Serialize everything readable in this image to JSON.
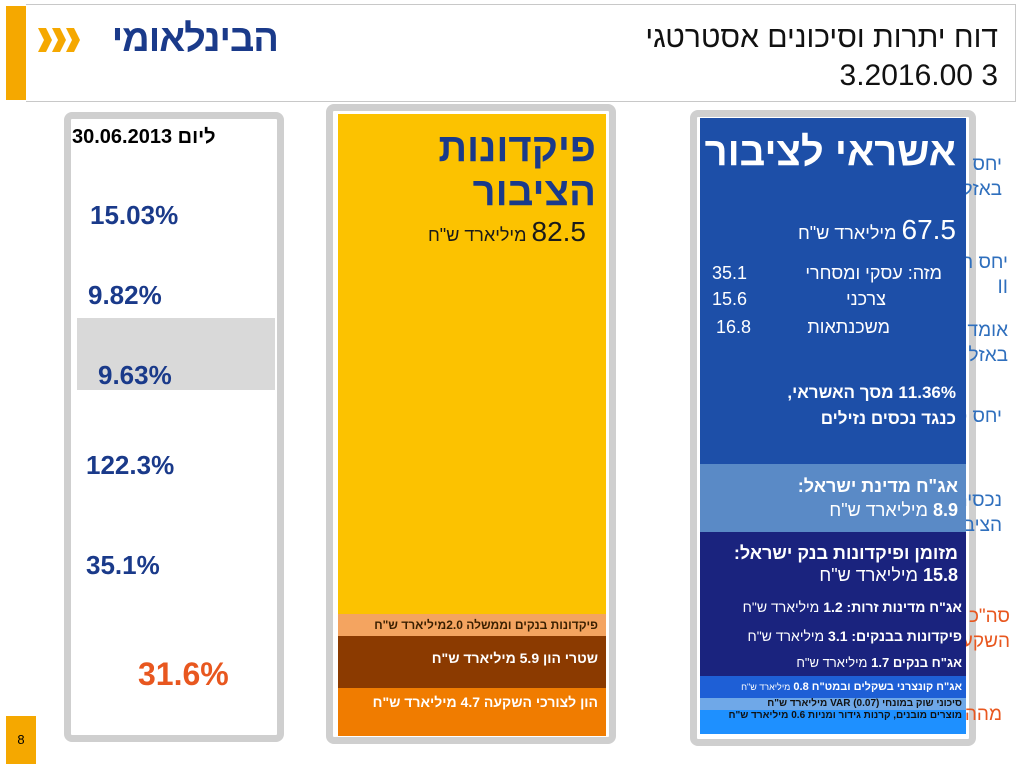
{
  "header": {
    "logo_text": "הבינלאומי",
    "title_line1": "דוח יתרות וסיכונים אסטרטגי",
    "title_line2": "3.2016.00 3"
  },
  "left_panel": {
    "date_prefix": "ליום",
    "date": "30.06.2013",
    "tier1_caption": "יחס הון לרכיבי סיכון לפי באזל II",
    "tier1_value": "15.03%",
    "leverage_caption": "יחס הון הליבה לפי באזל II",
    "leverage_value": "9.82%",
    "core3_caption": "אומדן יחס הון הליבה לפי באזל III",
    "core3_value": "9.63%",
    "deposits_caption": "יחס פיקדונות לאשראי",
    "deposits_value": "122.3%",
    "liquid_caption": "נכסים נזילים מפיקדונות הציבור",
    "liquid_value": "35.1%",
    "use_caption": "סה\"כ שימושי ההון לצורך השקעה",
    "use_value": "31.6%",
    "use_footer": "מההון לצורך השקעה"
  },
  "middle_panel": {
    "title": "פיקדונות הציבור",
    "amount": "82.5",
    "amount_unit": "מיליארד ש\"ח",
    "seg_banks_gov": "פיקדונות בנקים וממשלה 2.0מיליארד ש\"ח",
    "seg_cap_notes": "שטרי הון 5.9 מיליארד ש\"ח",
    "seg_equity": "הון לצורכי השקעה 4.7 מיליארד ש\"ח"
  },
  "right_panel": {
    "title": "אשראי לציבור",
    "amount": "67.5",
    "amount_unit": "מיליארד ש\"ח",
    "rows": [
      {
        "label": "מזה:  עסקי ומסחרי",
        "value": "35.1"
      },
      {
        "label": "צרכני",
        "value": "15.6"
      },
      {
        "label": "משכנתאות",
        "value": "16.8"
      }
    ],
    "ratio_line1": "11.36% מסך האשראי,",
    "ratio_line2": "כנגד נכסים נזילים",
    "gov_bonds_label": "אג\"ח מדינת ישראל:",
    "gov_bonds_value": "8.9",
    "gov_bonds_unit": "מיליארד ש\"ח",
    "cash_label": "מזומן ופיקדונות בנק ישראל:",
    "cash_value": "15.8",
    "cash_unit": "מיליארד ש\"ח",
    "s1_label": "אג\"ח מדינות זרות:",
    "s1_value": "1.2",
    "s1_unit": "מיליארד ש\"ח",
    "s2_label": "פיקדונות בבנקים:",
    "s2_value": "3.1",
    "s2_unit": "מיליארד ש\"ח",
    "s3_label": "אג\"ח בנקים",
    "s3_value": "1.7",
    "s3_unit": "מיליארד ש\"ח",
    "s4_label": "אג\"ח קונצרני בשקלים ובמט\"ח",
    "s4_value": "0.8",
    "s4_unit": "מיליארד ש\"ח",
    "s5_text": "סיכוני שוק במונחי VAR (0.07) מיליארד ש\"ח",
    "s6_text": "מוצרים מובנים, קרנות גידור ומניות 0.6 מיליארד ש\"ח"
  },
  "footer": {
    "page_number": "8"
  },
  "colors": {
    "brand_blue": "#1a3a8a",
    "accent_orange": "#f5a800",
    "yellow": "#fcc200",
    "dark_navy": "#1a237e"
  }
}
